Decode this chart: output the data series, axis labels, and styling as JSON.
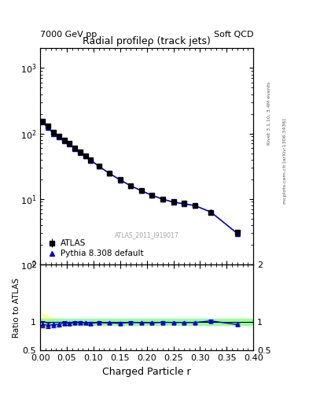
{
  "title": "Radial profileρ (track jets)",
  "header_left": "7000 GeV pp",
  "header_right": "Soft QCD",
  "watermark": "ATLAS_2011_I919017",
  "right_label_top": "Rivet 3.1.10, 3.4M events",
  "right_label_bot": "mcplots.cern.ch [arXiv:1306.3436]",
  "xlabel": "Charged Particle r",
  "ylabel_ratio": "Ratio to ATLAS",
  "atlas_x": [
    0.005,
    0.015,
    0.025,
    0.035,
    0.045,
    0.055,
    0.065,
    0.075,
    0.085,
    0.095,
    0.11,
    0.13,
    0.15,
    0.17,
    0.19,
    0.21,
    0.23,
    0.25,
    0.27,
    0.29,
    0.32,
    0.37
  ],
  "atlas_y": [
    155,
    130,
    105,
    92,
    80,
    70,
    60,
    52,
    46,
    40,
    32,
    25,
    20,
    16,
    13.5,
    11.5,
    10,
    9,
    8.5,
    8.0,
    6.2,
    3.1
  ],
  "atlas_yerr": [
    6,
    5,
    4,
    3.5,
    3,
    2.5,
    2,
    1.8,
    1.5,
    1.3,
    1.0,
    0.8,
    0.6,
    0.5,
    0.4,
    0.35,
    0.3,
    0.3,
    0.3,
    0.3,
    0.25,
    0.15
  ],
  "pythia_x": [
    0.005,
    0.015,
    0.025,
    0.035,
    0.045,
    0.055,
    0.065,
    0.075,
    0.085,
    0.095,
    0.11,
    0.13,
    0.15,
    0.17,
    0.19,
    0.21,
    0.23,
    0.25,
    0.27,
    0.29,
    0.32,
    0.37
  ],
  "pythia_y": [
    148,
    122,
    100,
    88,
    78,
    68,
    59,
    51,
    45,
    39,
    31.5,
    24.5,
    19.5,
    15.8,
    13.3,
    11.3,
    9.9,
    8.9,
    8.4,
    7.9,
    6.3,
    2.95
  ],
  "ratio_x": [
    0.005,
    0.015,
    0.025,
    0.035,
    0.045,
    0.055,
    0.065,
    0.075,
    0.085,
    0.095,
    0.11,
    0.13,
    0.15,
    0.17,
    0.19,
    0.21,
    0.23,
    0.25,
    0.27,
    0.29,
    0.32,
    0.37
  ],
  "ratio_y": [
    0.955,
    0.938,
    0.952,
    0.957,
    0.975,
    0.971,
    0.983,
    0.981,
    0.978,
    0.975,
    0.984,
    0.98,
    0.975,
    0.988,
    0.985,
    0.983,
    0.99,
    0.989,
    0.988,
    0.988,
    1.016,
    0.952
  ],
  "ratio_yerr": [
    0.055,
    0.05,
    0.045,
    0.04,
    0.038,
    0.033,
    0.03,
    0.028,
    0.025,
    0.025,
    0.022,
    0.02,
    0.018,
    0.018,
    0.016,
    0.016,
    0.016,
    0.016,
    0.016,
    0.016,
    0.018,
    0.018
  ],
  "green_band_upper": 1.05,
  "green_band_lower": 0.95,
  "yellow_band_upper": [
    1.15,
    1.1,
    1.07,
    1.05,
    1.05,
    1.04,
    1.04,
    1.04,
    1.04,
    1.03,
    1.03,
    1.03,
    1.03,
    1.03,
    1.03,
    1.03,
    1.03,
    1.03,
    1.03,
    1.03,
    1.04,
    1.04
  ],
  "yellow_band_lower": [
    0.85,
    0.9,
    0.93,
    0.95,
    0.95,
    0.96,
    0.96,
    0.96,
    0.96,
    0.97,
    0.97,
    0.97,
    0.97,
    0.97,
    0.97,
    0.97,
    0.97,
    0.97,
    0.97,
    0.97,
    0.96,
    0.96
  ],
  "atlas_color": "black",
  "pythia_color": "#0000cc",
  "bg_color": "white",
  "xlim": [
    0.0,
    0.4
  ],
  "ylim_main": [
    1.0,
    2000
  ],
  "ylim_ratio": [
    0.5,
    2.0
  ]
}
